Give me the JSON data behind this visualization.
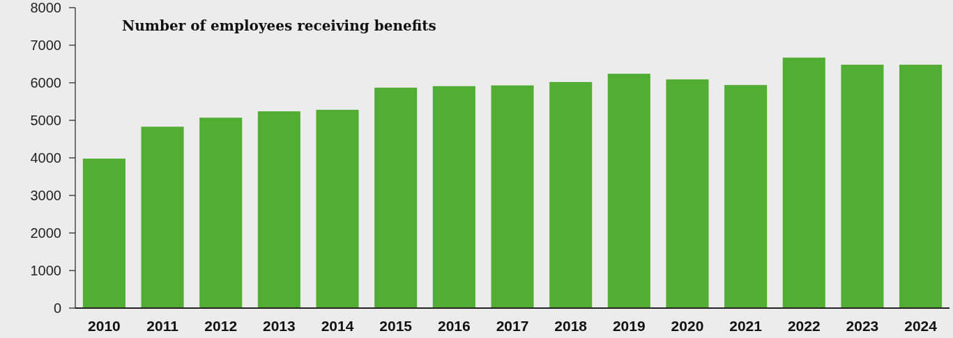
{
  "chart_data": {
    "type": "bar",
    "title": "Number of employees receiving benefits",
    "categories": [
      "2010",
      "2011",
      "2012",
      "2013",
      "2014",
      "2015",
      "2016",
      "2017",
      "2018",
      "2019",
      "2020",
      "2021",
      "2022",
      "2023",
      "2024"
    ],
    "values": [
      3980,
      4830,
      5070,
      5240,
      5280,
      5870,
      5910,
      5930,
      6020,
      6240,
      6090,
      5940,
      6670,
      6480,
      6480
    ],
    "color": "#52ae32",
    "ylim": [
      0,
      8000
    ],
    "yticks": [
      0,
      1000,
      2000,
      3000,
      4000,
      5000,
      6000,
      7000,
      8000
    ],
    "grid": false
  }
}
